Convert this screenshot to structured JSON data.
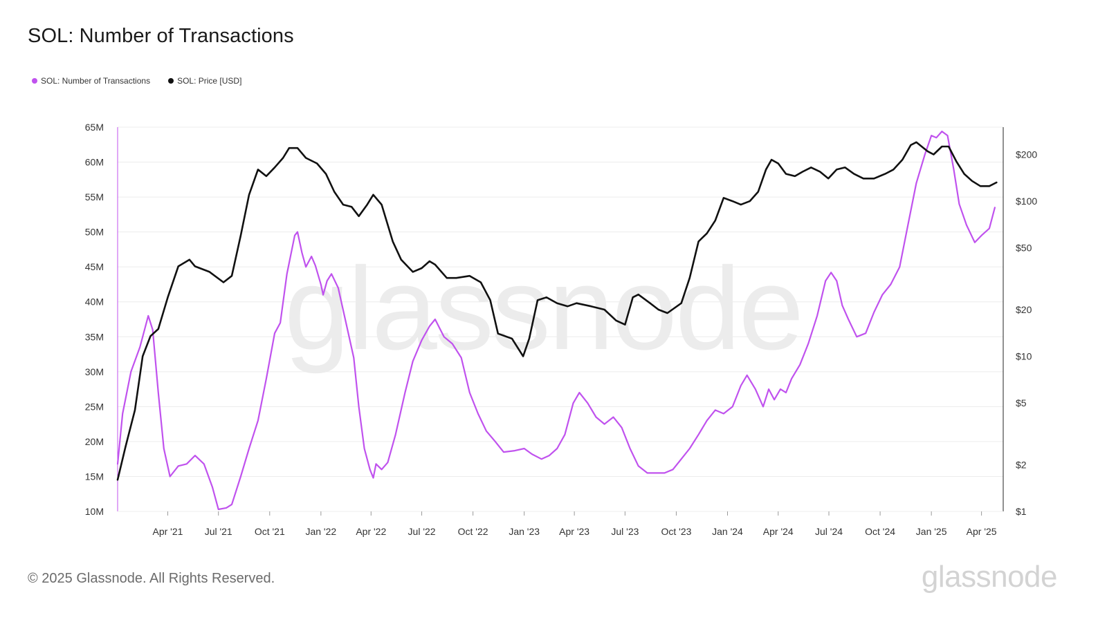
{
  "title": "SOL: Number of Transactions",
  "legend": [
    {
      "label": "SOL: Number of Transactions",
      "color": "#c052ee"
    },
    {
      "label": "SOL: Price [USD]",
      "color": "#111111"
    }
  ],
  "footer": "© 2025 Glassnode. All Rights Reserved.",
  "brand": "glassnode",
  "watermark": "glassnode",
  "chart_data": {
    "type": "line",
    "title": "SOL: Number of Transactions",
    "x_axis": {
      "type": "date",
      "range": [
        "2021-01-01",
        "2025-05-10"
      ],
      "ticks": [
        "Apr '21",
        "Jul '21",
        "Oct '21",
        "Jan '22",
        "Apr '22",
        "Jul '22",
        "Oct '22",
        "Jan '23",
        "Apr '23",
        "Jul '23",
        "Oct '23",
        "Jan '24",
        "Apr '24",
        "Jul '24",
        "Oct '24",
        "Jan '25",
        "Apr '25"
      ],
      "tick_dates": [
        "2021-04-01",
        "2021-07-01",
        "2021-10-01",
        "2022-01-01",
        "2022-04-01",
        "2022-07-01",
        "2022-10-01",
        "2023-01-01",
        "2023-04-01",
        "2023-07-01",
        "2023-10-01",
        "2024-01-01",
        "2024-04-01",
        "2024-07-01",
        "2024-10-01",
        "2025-01-01",
        "2025-04-01"
      ]
    },
    "y_left": {
      "range": [
        10000000,
        65000000
      ],
      "ticks": [
        10000000,
        15000000,
        20000000,
        25000000,
        30000000,
        35000000,
        40000000,
        45000000,
        50000000,
        55000000,
        60000000,
        65000000
      ],
      "tick_labels": [
        "10M",
        "15M",
        "20M",
        "25M",
        "30M",
        "35M",
        "40M",
        "45M",
        "50M",
        "55M",
        "60M",
        "65M"
      ]
    },
    "y_right": {
      "scale": "log",
      "range": [
        1,
        300
      ],
      "ticks": [
        1,
        2,
        5,
        10,
        20,
        50,
        100,
        200
      ],
      "tick_labels": [
        "$1",
        "$2",
        "$5",
        "$10",
        "$20",
        "$50",
        "$100",
        "$200"
      ]
    },
    "grid": "horizontal",
    "legend_position": "top-left",
    "series": [
      {
        "name": "SOL: Number of Transactions",
        "axis": "left",
        "color": "#c052ee",
        "points": [
          [
            "2021-01-01",
            16800000
          ],
          [
            "2021-01-10",
            24000000
          ],
          [
            "2021-01-25",
            30000000
          ],
          [
            "2021-02-10",
            33500000
          ],
          [
            "2021-02-25",
            38000000
          ],
          [
            "2021-03-05",
            36000000
          ],
          [
            "2021-03-15",
            27000000
          ],
          [
            "2021-03-25",
            19000000
          ],
          [
            "2021-04-05",
            15000000
          ],
          [
            "2021-04-20",
            16500000
          ],
          [
            "2021-05-05",
            16800000
          ],
          [
            "2021-05-20",
            18000000
          ],
          [
            "2021-06-05",
            16800000
          ],
          [
            "2021-06-20",
            13500000
          ],
          [
            "2021-07-01",
            10300000
          ],
          [
            "2021-07-15",
            10500000
          ],
          [
            "2021-07-25",
            11000000
          ],
          [
            "2021-08-10",
            15000000
          ],
          [
            "2021-08-25",
            19000000
          ],
          [
            "2021-09-10",
            23000000
          ],
          [
            "2021-09-25",
            29000000
          ],
          [
            "2021-10-10",
            35500000
          ],
          [
            "2021-10-20",
            37000000
          ],
          [
            "2021-11-01",
            44000000
          ],
          [
            "2021-11-15",
            49500000
          ],
          [
            "2021-11-20",
            50000000
          ],
          [
            "2021-11-28",
            47000000
          ],
          [
            "2021-12-05",
            45000000
          ],
          [
            "2021-12-15",
            46500000
          ],
          [
            "2021-12-22",
            45200000
          ],
          [
            "2022-01-01",
            42500000
          ],
          [
            "2022-01-05",
            41000000
          ],
          [
            "2022-01-12",
            43000000
          ],
          [
            "2022-01-20",
            44000000
          ],
          [
            "2022-02-01",
            42000000
          ],
          [
            "2022-02-15",
            37000000
          ],
          [
            "2022-03-01",
            32000000
          ],
          [
            "2022-03-10",
            25000000
          ],
          [
            "2022-03-20",
            19000000
          ],
          [
            "2022-03-30",
            16000000
          ],
          [
            "2022-04-05",
            14800000
          ],
          [
            "2022-04-10",
            16800000
          ],
          [
            "2022-04-20",
            16000000
          ],
          [
            "2022-05-01",
            17000000
          ],
          [
            "2022-05-15",
            21000000
          ],
          [
            "2022-06-01",
            27000000
          ],
          [
            "2022-06-15",
            31500000
          ],
          [
            "2022-07-01",
            34500000
          ],
          [
            "2022-07-15",
            36500000
          ],
          [
            "2022-07-25",
            37500000
          ],
          [
            "2022-08-10",
            35000000
          ],
          [
            "2022-08-25",
            34000000
          ],
          [
            "2022-09-10",
            32000000
          ],
          [
            "2022-09-25",
            27000000
          ],
          [
            "2022-10-10",
            24000000
          ],
          [
            "2022-10-25",
            21500000
          ],
          [
            "2022-11-10",
            20000000
          ],
          [
            "2022-11-25",
            18500000
          ],
          [
            "2022-12-15",
            18700000
          ],
          [
            "2023-01-01",
            19000000
          ],
          [
            "2023-01-15",
            18200000
          ],
          [
            "2023-02-01",
            17500000
          ],
          [
            "2023-02-15",
            18000000
          ],
          [
            "2023-03-01",
            19000000
          ],
          [
            "2023-03-15",
            21000000
          ],
          [
            "2023-03-30",
            25500000
          ],
          [
            "2023-04-10",
            27000000
          ],
          [
            "2023-04-25",
            25500000
          ],
          [
            "2023-05-10",
            23500000
          ],
          [
            "2023-05-25",
            22500000
          ],
          [
            "2023-06-10",
            23500000
          ],
          [
            "2023-06-25",
            22000000
          ],
          [
            "2023-07-10",
            19000000
          ],
          [
            "2023-07-25",
            16500000
          ],
          [
            "2023-08-10",
            15500000
          ],
          [
            "2023-08-25",
            15500000
          ],
          [
            "2023-09-10",
            15500000
          ],
          [
            "2023-09-25",
            16000000
          ],
          [
            "2023-10-10",
            17500000
          ],
          [
            "2023-10-25",
            19000000
          ],
          [
            "2023-11-10",
            21000000
          ],
          [
            "2023-11-25",
            23000000
          ],
          [
            "2023-12-10",
            24500000
          ],
          [
            "2023-12-25",
            24000000
          ],
          [
            "2024-01-10",
            25000000
          ],
          [
            "2024-01-25",
            28000000
          ],
          [
            "2024-02-05",
            29500000
          ],
          [
            "2024-02-20",
            27500000
          ],
          [
            "2024-03-05",
            25000000
          ],
          [
            "2024-03-15",
            27500000
          ],
          [
            "2024-03-25",
            26000000
          ],
          [
            "2024-04-05",
            27500000
          ],
          [
            "2024-04-15",
            27000000
          ],
          [
            "2024-04-25",
            29000000
          ],
          [
            "2024-05-10",
            31000000
          ],
          [
            "2024-05-25",
            34000000
          ],
          [
            "2024-06-10",
            38000000
          ],
          [
            "2024-06-25",
            43000000
          ],
          [
            "2024-07-05",
            44200000
          ],
          [
            "2024-07-15",
            43000000
          ],
          [
            "2024-07-25",
            39500000
          ],
          [
            "2024-08-05",
            37500000
          ],
          [
            "2024-08-20",
            35000000
          ],
          [
            "2024-09-05",
            35500000
          ],
          [
            "2024-09-20",
            38500000
          ],
          [
            "2024-10-05",
            41000000
          ],
          [
            "2024-10-20",
            42500000
          ],
          [
            "2024-11-05",
            45000000
          ],
          [
            "2024-11-20",
            51000000
          ],
          [
            "2024-12-05",
            57000000
          ],
          [
            "2024-12-20",
            61000000
          ],
          [
            "2025-01-01",
            63800000
          ],
          [
            "2025-01-10",
            63500000
          ],
          [
            "2025-01-20",
            64400000
          ],
          [
            "2025-01-30",
            63800000
          ],
          [
            "2025-02-10",
            59000000
          ],
          [
            "2025-02-20",
            54000000
          ],
          [
            "2025-03-05",
            51000000
          ],
          [
            "2025-03-20",
            48500000
          ],
          [
            "2025-04-01",
            49500000
          ],
          [
            "2025-04-15",
            50500000
          ],
          [
            "2025-04-25",
            53500000
          ]
        ]
      },
      {
        "name": "SOL: Price [USD]",
        "axis": "right",
        "color": "#111111",
        "points": [
          [
            "2021-01-01",
            1.6
          ],
          [
            "2021-01-15",
            2.6
          ],
          [
            "2021-02-01",
            4.5
          ],
          [
            "2021-02-15",
            10
          ],
          [
            "2021-03-01",
            13.5
          ],
          [
            "2021-03-15",
            15
          ],
          [
            "2021-04-01",
            24
          ],
          [
            "2021-04-20",
            38
          ],
          [
            "2021-05-10",
            42
          ],
          [
            "2021-05-20",
            38
          ],
          [
            "2021-06-15",
            35
          ],
          [
            "2021-07-10",
            30
          ],
          [
            "2021-07-25",
            33
          ],
          [
            "2021-08-10",
            60
          ],
          [
            "2021-08-25",
            110
          ],
          [
            "2021-09-10",
            160
          ],
          [
            "2021-09-25",
            145
          ],
          [
            "2021-10-10",
            165
          ],
          [
            "2021-10-25",
            190
          ],
          [
            "2021-11-05",
            220
          ],
          [
            "2021-11-20",
            220
          ],
          [
            "2021-12-05",
            190
          ],
          [
            "2021-12-25",
            175
          ],
          [
            "2022-01-10",
            150
          ],
          [
            "2022-01-25",
            115
          ],
          [
            "2022-02-10",
            95
          ],
          [
            "2022-02-25",
            92
          ],
          [
            "2022-03-10",
            80
          ],
          [
            "2022-03-25",
            95
          ],
          [
            "2022-04-05",
            110
          ],
          [
            "2022-04-20",
            95
          ],
          [
            "2022-05-10",
            55
          ],
          [
            "2022-05-25",
            42
          ],
          [
            "2022-06-15",
            35
          ],
          [
            "2022-07-01",
            37
          ],
          [
            "2022-07-15",
            41
          ],
          [
            "2022-07-25",
            39
          ],
          [
            "2022-08-15",
            32
          ],
          [
            "2022-09-01",
            32
          ],
          [
            "2022-09-25",
            33
          ],
          [
            "2022-10-15",
            30
          ],
          [
            "2022-11-01",
            23
          ],
          [
            "2022-11-15",
            14
          ],
          [
            "2022-12-10",
            13
          ],
          [
            "2022-12-30",
            10
          ],
          [
            "2023-01-10",
            13
          ],
          [
            "2023-01-25",
            23
          ],
          [
            "2023-02-10",
            24
          ],
          [
            "2023-03-01",
            22
          ],
          [
            "2023-03-20",
            21
          ],
          [
            "2023-04-05",
            22
          ],
          [
            "2023-05-01",
            21
          ],
          [
            "2023-05-25",
            20
          ],
          [
            "2023-06-15",
            17
          ],
          [
            "2023-07-01",
            16
          ],
          [
            "2023-07-15",
            24
          ],
          [
            "2023-07-25",
            25
          ],
          [
            "2023-08-15",
            22
          ],
          [
            "2023-08-30",
            20
          ],
          [
            "2023-09-15",
            19
          ],
          [
            "2023-10-10",
            22
          ],
          [
            "2023-10-25",
            32
          ],
          [
            "2023-11-10",
            55
          ],
          [
            "2023-11-25",
            62
          ],
          [
            "2023-12-10",
            75
          ],
          [
            "2023-12-25",
            105
          ],
          [
            "2024-01-10",
            100
          ],
          [
            "2024-01-25",
            95
          ],
          [
            "2024-02-10",
            100
          ],
          [
            "2024-02-25",
            115
          ],
          [
            "2024-03-10",
            160
          ],
          [
            "2024-03-20",
            185
          ],
          [
            "2024-04-01",
            175
          ],
          [
            "2024-04-15",
            150
          ],
          [
            "2024-05-01",
            145
          ],
          [
            "2024-05-15",
            155
          ],
          [
            "2024-05-30",
            165
          ],
          [
            "2024-06-15",
            155
          ],
          [
            "2024-06-30",
            140
          ],
          [
            "2024-07-15",
            160
          ],
          [
            "2024-07-30",
            165
          ],
          [
            "2024-08-15",
            150
          ],
          [
            "2024-09-01",
            140
          ],
          [
            "2024-09-20",
            140
          ],
          [
            "2024-10-10",
            150
          ],
          [
            "2024-10-25",
            160
          ],
          [
            "2024-11-10",
            185
          ],
          [
            "2024-11-25",
            230
          ],
          [
            "2024-12-05",
            240
          ],
          [
            "2024-12-25",
            210
          ],
          [
            "2025-01-05",
            200
          ],
          [
            "2025-01-20",
            225
          ],
          [
            "2025-02-01",
            225
          ],
          [
            "2025-02-15",
            180
          ],
          [
            "2025-03-01",
            150
          ],
          [
            "2025-03-15",
            135
          ],
          [
            "2025-03-30",
            125
          ],
          [
            "2025-04-15",
            125
          ],
          [
            "2025-04-28",
            132
          ]
        ]
      }
    ]
  }
}
